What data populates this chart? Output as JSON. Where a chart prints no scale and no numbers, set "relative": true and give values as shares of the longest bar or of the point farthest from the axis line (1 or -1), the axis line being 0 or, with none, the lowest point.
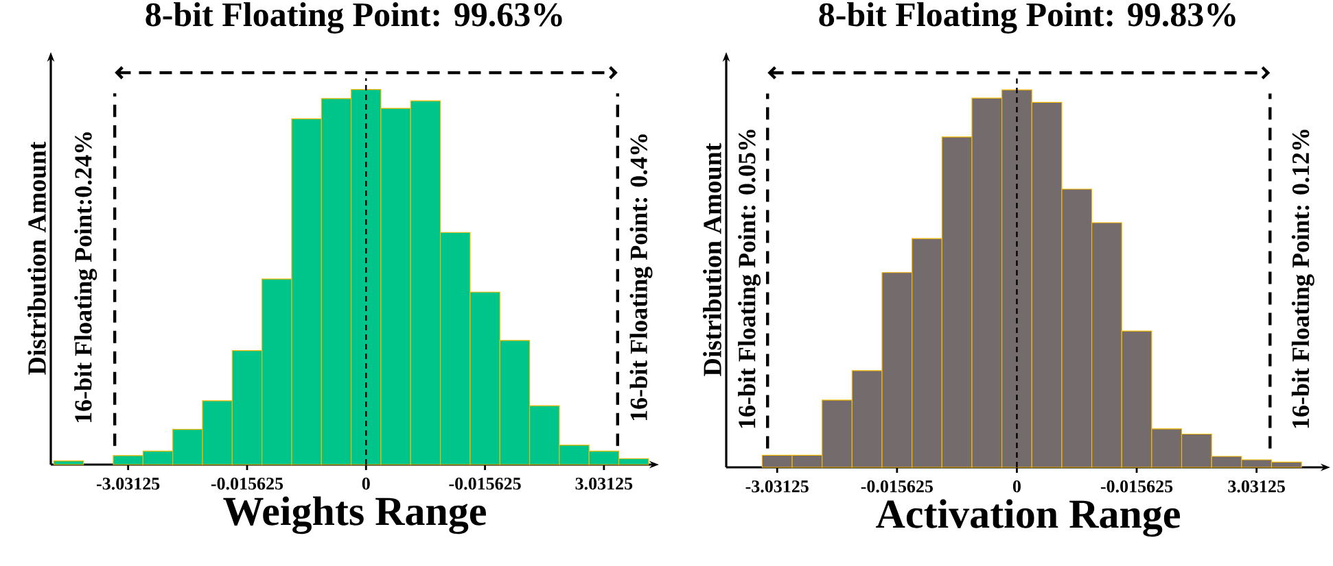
{
  "chart_data": [
    {
      "type": "bar",
      "title": "8-bit Floating Point: 99.63%",
      "xlabel": "Weights Range",
      "ylabel": "Distribution Amount",
      "relative": true,
      "color": "#00c58a",
      "categories": [
        null,
        null,
        "-3.03125",
        null,
        null,
        null,
        "-0.015625",
        null,
        null,
        null,
        "0",
        null,
        null,
        null,
        "-0.015625",
        null,
        null,
        null,
        "3.03125",
        null
      ],
      "values": [
        0.01,
        0,
        0.024,
        0.036,
        0.094,
        0.17,
        0.304,
        0.495,
        0.922,
        0.976,
        1,
        0.95,
        0.97,
        0.619,
        0.46,
        0.331,
        0.157,
        0.052,
        0.036,
        0.016
      ],
      "annotations": [
        "16-bit Floating Point:0.24%",
        "16-bit Floating Point: 0.4%"
      ]
    },
    {
      "type": "bar",
      "title": "8-bit Floating Point: 99.83%",
      "xlabel": "Activation Range",
      "ylabel": "Distribution Amount",
      "relative": true,
      "color": "#746c6c",
      "categories": [
        "-3.03125",
        null,
        null,
        null,
        "-0.015625",
        null,
        null,
        null,
        "0",
        null,
        null,
        null,
        "-0.015625",
        null,
        null,
        null,
        "3.03125",
        null
      ],
      "values": [
        0.032,
        0.032,
        0.178,
        0.256,
        0.516,
        0.606,
        0.875,
        0.978,
        1,
        0.967,
        0.737,
        0.648,
        0.361,
        0.102,
        0.088,
        0.029,
        0.02,
        0.014
      ],
      "annotations": [
        "16-bit Floating Point: 0.05%",
        "16-bit Floating Point: 0.12%"
      ]
    }
  ]
}
